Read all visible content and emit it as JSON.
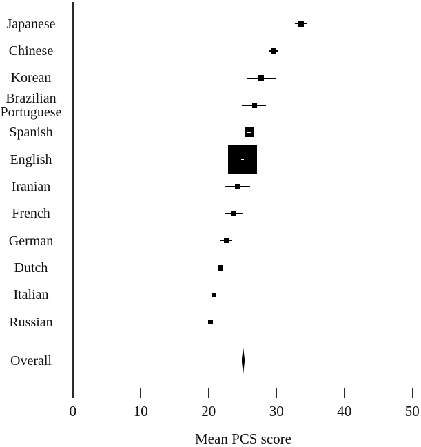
{
  "chart_data": {
    "type": "scatter",
    "subtype": "forest-plot",
    "title": "",
    "xlabel": "Mean PCS score",
    "ylabel": "",
    "xlim": [
      0,
      50
    ],
    "xticks": [
      0,
      10,
      20,
      30,
      40,
      50
    ],
    "grid": false,
    "legend": "none",
    "categories": [
      "Japanese",
      "Chinese",
      "Korean",
      "Brazilian Portuguese",
      "Spanish",
      "English",
      "Iranian",
      "French",
      "German",
      "Dutch",
      "Italian",
      "Russian",
      "Overall"
    ],
    "studies": [
      {
        "label": "Japanese",
        "mean": 33.6,
        "ci_low": 32.7,
        "ci_high": 34.5,
        "marker_px": 8
      },
      {
        "label": "Chinese",
        "mean": 29.5,
        "ci_low": 28.9,
        "ci_high": 30.3,
        "marker_px": 7.5
      },
      {
        "label": "Korean",
        "mean": 27.7,
        "ci_low": 25.7,
        "ci_high": 29.9,
        "marker_px": 8
      },
      {
        "label": "Brazilian Portuguese",
        "mean": 26.8,
        "ci_low": 24.9,
        "ci_high": 28.5,
        "marker_px": 7.5
      },
      {
        "label": "Spanish",
        "mean": 26.0,
        "ci_low": 25.7,
        "ci_high": 26.4,
        "marker_px": 14.5
      },
      {
        "label": "English",
        "mean": 25.0,
        "ci_low": 24.8,
        "ci_high": 25.2,
        "marker_px": 42
      },
      {
        "label": "Iranian",
        "mean": 24.3,
        "ci_low": 22.5,
        "ci_high": 26.1,
        "marker_px": 8
      },
      {
        "label": "French",
        "mean": 23.7,
        "ci_low": 22.5,
        "ci_high": 25.1,
        "marker_px": 7.5
      },
      {
        "label": "German",
        "mean": 22.6,
        "ci_low": 21.8,
        "ci_high": 23.4,
        "marker_px": 6.5
      },
      {
        "label": "Dutch",
        "mean": 21.7,
        "ci_low": 21.3,
        "ci_high": 22.1,
        "marker_px": 7.5
      },
      {
        "label": "Italian",
        "mean": 20.7,
        "ci_low": 20.0,
        "ci_high": 21.3,
        "marker_px": 6
      },
      {
        "label": "Russian",
        "mean": 20.3,
        "ci_low": 18.9,
        "ci_high": 21.8,
        "marker_px": 6.5
      }
    ],
    "overall": {
      "label": "Overall",
      "mean": 25.1,
      "ci_low": 24.9,
      "ci_high": 25.2
    }
  },
  "colors": {
    "marker": "#000000",
    "ci_line": "#000000",
    "inner_ci_dash": "#ffffff",
    "axis": "#2b2b2b",
    "text": "#111111",
    "background": "#ffffff"
  }
}
